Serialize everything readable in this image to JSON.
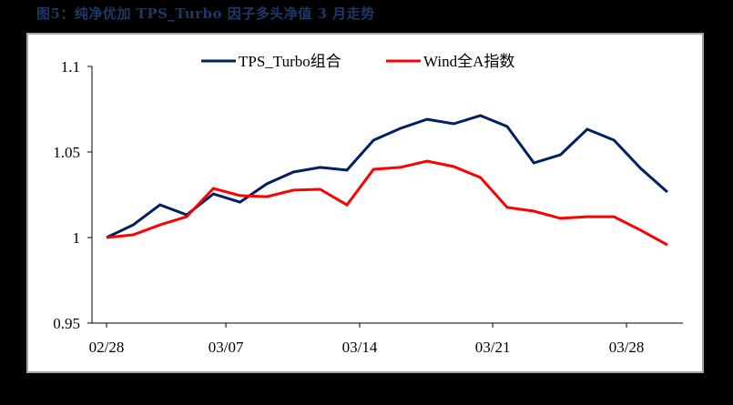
{
  "title": "图5：纯净优加 TPS_Turbo 因子多头净值 3 月走势",
  "chart_data": {
    "type": "line",
    "title": "纯净优加 TPS_Turbo 因子多头净值 3 月走势",
    "xlabel": "",
    "ylabel": "",
    "ylim": [
      0.95,
      1.1
    ],
    "yticks": [
      0.95,
      1,
      1.05,
      1.1
    ],
    "ytick_labels": [
      "0.95",
      "1",
      "1.05",
      "1.1"
    ],
    "xtick_labels": [
      "02/28",
      "03/07",
      "03/14",
      "03/21",
      "03/28"
    ],
    "xtick_indices": [
      0,
      4.47,
      9.48,
      14.46,
      19.47
    ],
    "grid": false,
    "legend_position": "top",
    "x": [
      0,
      1,
      2,
      3,
      4,
      5,
      6,
      7,
      8,
      9,
      10,
      11,
      12,
      13,
      14,
      15,
      16,
      17,
      18,
      19,
      20,
      21
    ],
    "series": [
      {
        "name": "TPS_Turbo组合",
        "color": "#002060",
        "values": [
          1.0,
          1.0074,
          1.0191,
          1.0133,
          1.0255,
          1.0207,
          1.0314,
          1.0383,
          1.041,
          1.0394,
          1.0569,
          1.0638,
          1.0691,
          1.0665,
          1.0713,
          1.0649,
          1.0436,
          1.0484,
          1.0633,
          1.0569,
          1.0404,
          1.0266
        ]
      },
      {
        "name": "Wind全A指数",
        "color": "#ff0000",
        "values": [
          1.0,
          1.0016,
          1.0074,
          1.0122,
          1.0287,
          1.0245,
          1.0239,
          1.0277,
          1.0282,
          1.0191,
          1.0399,
          1.041,
          1.0447,
          1.0415,
          1.0351,
          1.0176,
          1.0154,
          1.0112,
          1.0122,
          1.0122,
          1.0043,
          0.9957
        ]
      }
    ]
  },
  "legend": {
    "items": [
      {
        "label": "TPS_Turbo组合",
        "color": "#002060"
      },
      {
        "label": "Wind全A指数",
        "color": "#ff0000"
      }
    ]
  }
}
